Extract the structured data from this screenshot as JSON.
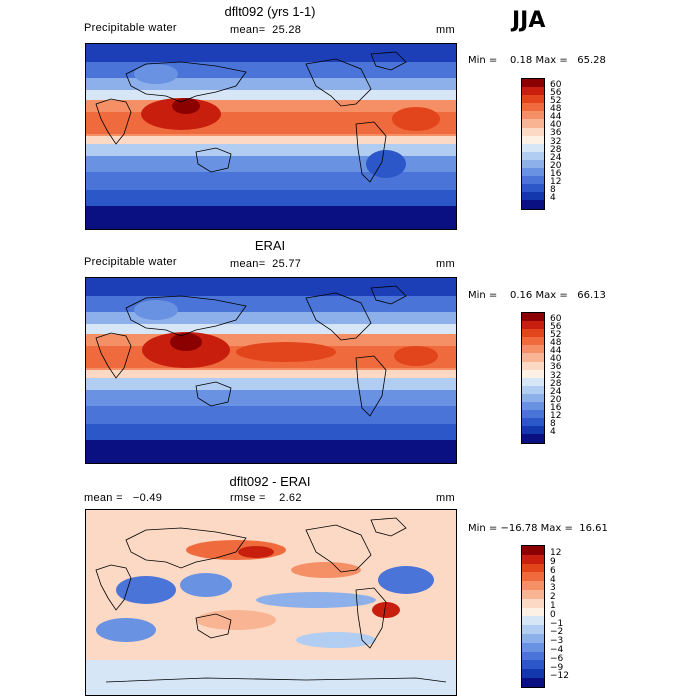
{
  "season": "JJA",
  "panels": [
    {
      "title": "dflt092 (yrs 1-1)",
      "variable": "Precipitable water",
      "stat1": "mean=  25.28",
      "stat2": "",
      "units": "mm",
      "minmax": "Min =    0.18 Max =   65.28",
      "colorbar": {
        "labels": [
          "60",
          "56",
          "52",
          "48",
          "44",
          "40",
          "36",
          "32",
          "28",
          "24",
          "20",
          "16",
          "12",
          "8",
          "4"
        ],
        "colors": [
          "#8b0000",
          "#c81e0e",
          "#e2441c",
          "#ef6a3c",
          "#f58f65",
          "#f9b593",
          "#fbd9c4",
          "#fdf1e6",
          "#d6e6f7",
          "#b2cdf2",
          "#8db0ea",
          "#6a92e2",
          "#4a74d8",
          "#2c57c9",
          "#1338ad",
          "#0a0f82"
        ]
      }
    },
    {
      "title": "ERAI",
      "variable": "Precipitable water",
      "stat1": "mean=  25.77",
      "stat2": "",
      "units": "mm",
      "minmax": "Min =    0.16 Max =   66.13",
      "colorbar": {
        "labels": [
          "60",
          "56",
          "52",
          "48",
          "44",
          "40",
          "36",
          "32",
          "28",
          "24",
          "20",
          "16",
          "12",
          "8",
          "4"
        ],
        "colors": [
          "#8b0000",
          "#c81e0e",
          "#e2441c",
          "#ef6a3c",
          "#f58f65",
          "#f9b593",
          "#fbd9c4",
          "#fdf1e6",
          "#d6e6f7",
          "#b2cdf2",
          "#8db0ea",
          "#6a92e2",
          "#4a74d8",
          "#2c57c9",
          "#1338ad",
          "#0a0f82"
        ]
      }
    },
    {
      "title": "dflt092 - ERAI",
      "variable": "",
      "stat1": "mean =   −0.49",
      "stat2": "rmse =    2.62",
      "units": "mm",
      "minmax": "Min = −16.78 Max =  16.61",
      "colorbar": {
        "labels": [
          "12",
          "9",
          "6",
          "4",
          "3",
          "2",
          "1",
          "0",
          "−1",
          "−2",
          "−3",
          "−4",
          "−6",
          "−9",
          "−12"
        ],
        "colors": [
          "#8b0000",
          "#c81e0e",
          "#e2441c",
          "#ef6a3c",
          "#f58f65",
          "#f9b593",
          "#fbd9c4",
          "#fdf1e6",
          "#d6e6f7",
          "#b2cdf2",
          "#8db0ea",
          "#6a92e2",
          "#4a74d8",
          "#2c57c9",
          "#1338ad",
          "#0a0f82"
        ]
      }
    }
  ]
}
